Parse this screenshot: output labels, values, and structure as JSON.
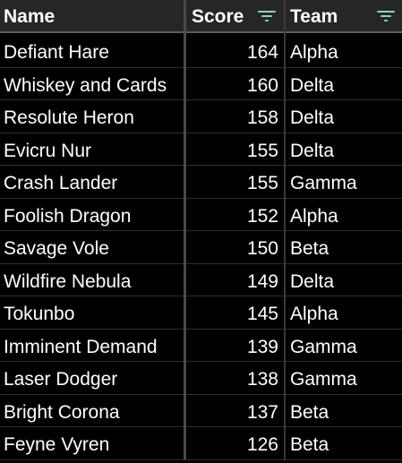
{
  "columns": {
    "name": "Name",
    "score": "Score",
    "team": "Team"
  },
  "icons": {
    "score_filter": "filter-icon",
    "team_filter": "filter-icon",
    "accent_color": "#8fd1c3"
  },
  "rows": [
    {
      "name": "Defiant Hare",
      "score": "164",
      "team": "Alpha"
    },
    {
      "name": "Whiskey and Cards",
      "score": "160",
      "team": "Delta"
    },
    {
      "name": "Resolute Heron",
      "score": "158",
      "team": "Delta"
    },
    {
      "name": "Evicru Nur",
      "score": "155",
      "team": "Delta"
    },
    {
      "name": "Crash Lander",
      "score": "155",
      "team": "Gamma"
    },
    {
      "name": "Foolish Dragon",
      "score": "152",
      "team": "Alpha"
    },
    {
      "name": "Savage Vole",
      "score": "150",
      "team": "Beta"
    },
    {
      "name": "Wildfire Nebula",
      "score": "149",
      "team": "Delta"
    },
    {
      "name": "Tokunbo",
      "score": "145",
      "team": "Alpha"
    },
    {
      "name": "Imminent Demand",
      "score": "139",
      "team": "Gamma"
    },
    {
      "name": "Laser Dodger",
      "score": "138",
      "team": "Gamma"
    },
    {
      "name": "Bright Corona",
      "score": "137",
      "team": "Beta"
    },
    {
      "name": "Feyne Vyren",
      "score": "126",
      "team": "Beta"
    }
  ]
}
